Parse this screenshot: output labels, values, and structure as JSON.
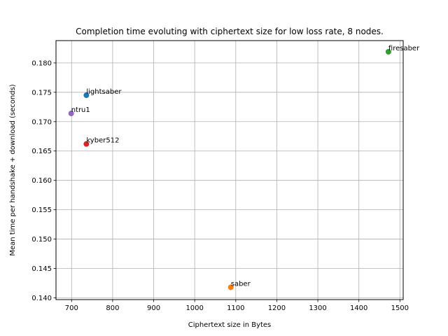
{
  "chart_data": {
    "type": "scatter",
    "title": "Completion time evoluting with ciphertext size for low loss rate, 8 nodes.",
    "xlabel": "Ciphertext size in Bytes",
    "ylabel": "Mean time per handshake + download (seconds)",
    "xlim": [
      662,
      1508
    ],
    "ylim": [
      0.1397,
      0.1838
    ],
    "xticks": [
      700,
      800,
      900,
      1000,
      1100,
      1200,
      1300,
      1400,
      1500
    ],
    "yticks": [
      0.14,
      0.145,
      0.15,
      0.155,
      0.16,
      0.165,
      0.17,
      0.175,
      0.18
    ],
    "grid": true,
    "points": [
      {
        "label": "lightsaber",
        "x": 736,
        "y": 0.1745,
        "color": "#1f77b4"
      },
      {
        "label": "saber",
        "x": 1088,
        "y": 0.1418,
        "color": "#ff7f0e"
      },
      {
        "label": "firesaber",
        "x": 1472,
        "y": 0.1819,
        "color": "#2ca02c"
      },
      {
        "label": "kyber512",
        "x": 736,
        "y": 0.1662,
        "color": "#d62728"
      },
      {
        "label": "ntru1",
        "x": 699,
        "y": 0.1714,
        "color": "#9467bd"
      }
    ]
  }
}
